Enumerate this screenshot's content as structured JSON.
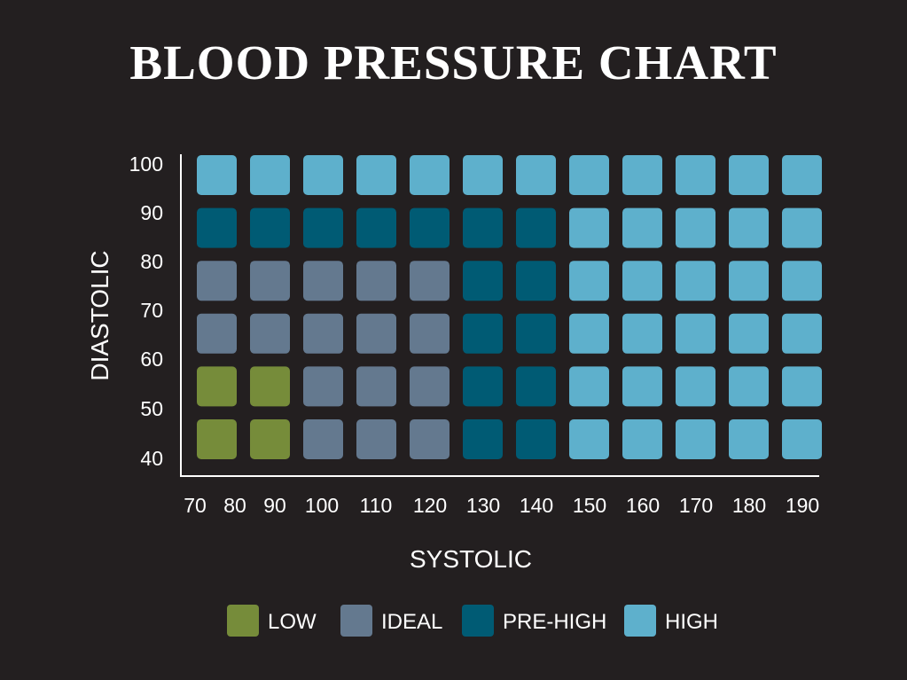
{
  "title": "BLOOD PRESSURE CHART",
  "chart_data": {
    "type": "heatmap",
    "title": "BLOOD PRESSURE CHART",
    "xlabel": "SYSTOLIC",
    "ylabel": "DIASTOLIC",
    "x_ticks": [
      "70",
      "80",
      "90",
      "100",
      "110",
      "120",
      "130",
      "140",
      "150",
      "160",
      "170",
      "180",
      "190"
    ],
    "y_ticks": [
      "100",
      "90",
      "80",
      "70",
      "60",
      "50",
      "40"
    ],
    "columns": [
      "80",
      "90",
      "100",
      "110",
      "120",
      "130",
      "140",
      "150",
      "160",
      "170",
      "180",
      "190"
    ],
    "rows": [
      "100",
      "90",
      "80",
      "70",
      "60",
      "50"
    ],
    "legend": [
      {
        "key": "low",
        "label": "LOW",
        "color": "#768c3a"
      },
      {
        "key": "ideal",
        "label": "IDEAL",
        "color": "#64798f"
      },
      {
        "key": "pre_high",
        "label": "PRE-HIGH",
        "color": "#005b74"
      },
      {
        "key": "high",
        "label": "HIGH",
        "color": "#5eb0cc"
      }
    ],
    "grid": [
      [
        "high",
        "high",
        "high",
        "high",
        "high",
        "high",
        "high",
        "high",
        "high",
        "high",
        "high",
        "high"
      ],
      [
        "pre_high",
        "pre_high",
        "pre_high",
        "pre_high",
        "pre_high",
        "pre_high",
        "pre_high",
        "high",
        "high",
        "high",
        "high",
        "high"
      ],
      [
        "ideal",
        "ideal",
        "ideal",
        "ideal",
        "ideal",
        "pre_high",
        "pre_high",
        "high",
        "high",
        "high",
        "high",
        "high"
      ],
      [
        "ideal",
        "ideal",
        "ideal",
        "ideal",
        "ideal",
        "pre_high",
        "pre_high",
        "high",
        "high",
        "high",
        "high",
        "high"
      ],
      [
        "low",
        "low",
        "ideal",
        "ideal",
        "ideal",
        "pre_high",
        "pre_high",
        "high",
        "high",
        "high",
        "high",
        "high"
      ],
      [
        "low",
        "low",
        "ideal",
        "ideal",
        "ideal",
        "pre_high",
        "pre_high",
        "high",
        "high",
        "high",
        "high",
        "high"
      ]
    ],
    "grid_lines": false,
    "legend_position": "bottom"
  }
}
